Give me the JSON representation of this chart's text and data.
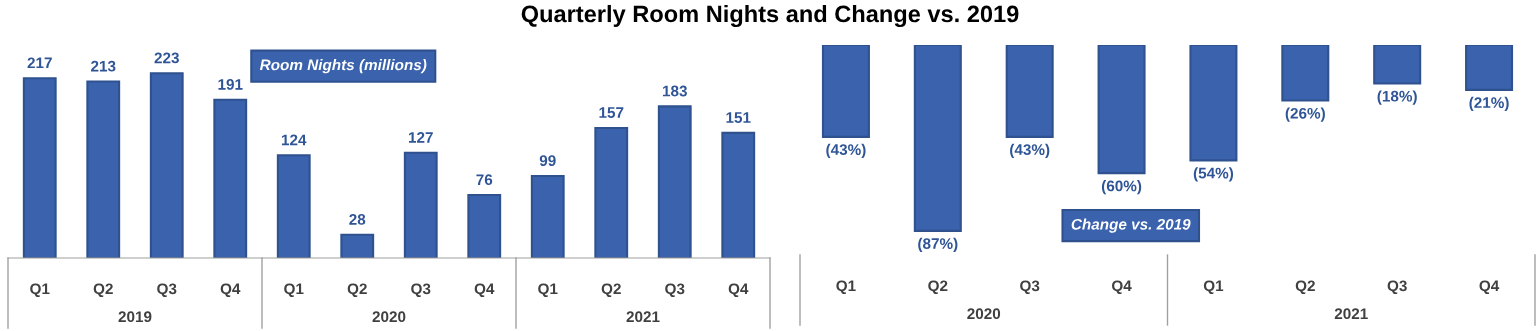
{
  "chart_data": [
    {
      "type": "bar",
      "title": "Quarterly Room Nights and Change vs. 2019",
      "categories": [
        "Q1",
        "Q2",
        "Q3",
        "Q4",
        "Q1",
        "Q2",
        "Q3",
        "Q4",
        "Q1",
        "Q2",
        "Q3",
        "Q4"
      ],
      "values": [
        217,
        213,
        223,
        191,
        124,
        28,
        127,
        76,
        99,
        157,
        183,
        151
      ],
      "color": "#3a62ad",
      "data_labels": true,
      "grid": false,
      "legend": false,
      "annotations": [
        "Room Nights (millions)",
        "2019",
        "2020",
        "2021"
      ]
    },
    {
      "type": "bar",
      "categories": [
        "Q1",
        "Q2",
        "Q3",
        "Q4",
        "Q1",
        "Q2",
        "Q3",
        "Q4"
      ],
      "values": [
        -43,
        -87,
        -43,
        -60,
        -54,
        -26,
        -18,
        -21
      ],
      "value_labels": [
        "(43%)",
        "(87%)",
        "(43%)",
        "(60%)",
        "(54%)",
        "(26%)",
        "(18%)",
        "(21%)"
      ],
      "color": "#3a62ad",
      "grid": false,
      "legend": false,
      "annotations": [
        "Change vs. 2019",
        "2020",
        "2021"
      ]
    }
  ]
}
